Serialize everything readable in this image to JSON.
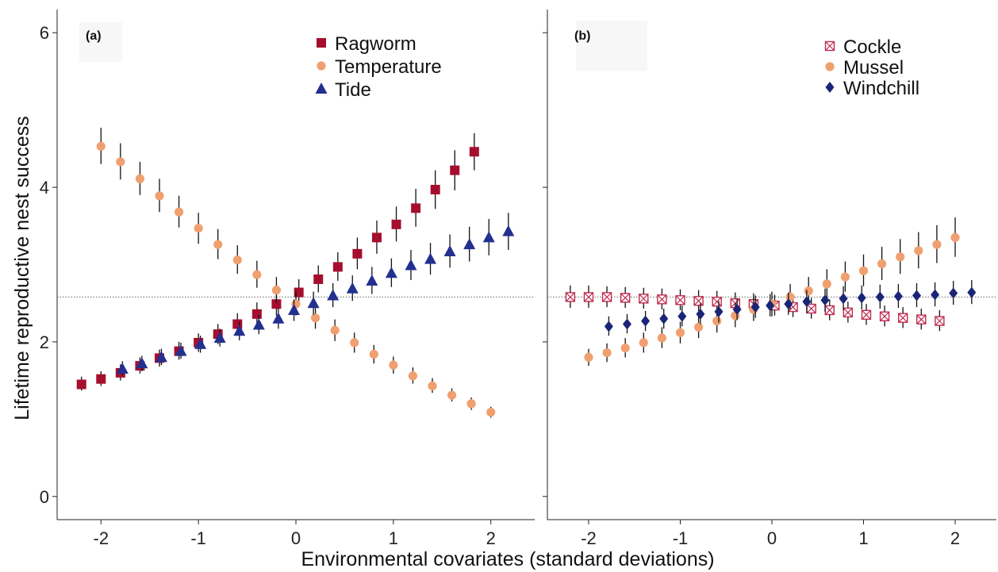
{
  "figure": {
    "xlabel": "Environmental covariates (standard deviations)",
    "ylabel": "Lifetime reproductive nest success"
  },
  "colors": {
    "ragworm": "#a50f2d",
    "temperature": "#f0a070",
    "tide": "#23308f",
    "cockle": "#c02a4e",
    "mussel": "#f0a070",
    "windchill": "#1b2577",
    "errorbar": "#111111",
    "refline": "#666666"
  },
  "chart_data": [
    {
      "type": "scatter",
      "panel_label": "(a)",
      "title": "",
      "xlabel": "Environmental covariates (standard deviations)",
      "ylabel": "Lifetime reproductive nest success",
      "xlim": [
        -2.45,
        2.45
      ],
      "ylim": [
        -0.3,
        6.3
      ],
      "xticks": [
        -2,
        -1,
        0,
        1,
        2
      ],
      "yticks": [
        0,
        2,
        4,
        6
      ],
      "reference_y": 2.58,
      "grid": false,
      "legend_position": "top-right",
      "series": [
        {
          "name": "Ragworm",
          "marker": "square",
          "color": "#a50f2d",
          "points": [
            {
              "x": -2.2,
              "y": 1.45,
              "lo": 1.37,
              "hi": 1.55
            },
            {
              "x": -2.0,
              "y": 1.52,
              "lo": 1.43,
              "hi": 1.62
            },
            {
              "x": -1.8,
              "y": 1.6,
              "lo": 1.5,
              "hi": 1.71
            },
            {
              "x": -1.6,
              "y": 1.69,
              "lo": 1.59,
              "hi": 1.8
            },
            {
              "x": -1.4,
              "y": 1.79,
              "lo": 1.68,
              "hi": 1.9
            },
            {
              "x": -1.2,
              "y": 1.88,
              "lo": 1.77,
              "hi": 2.0
            },
            {
              "x": -1.0,
              "y": 1.99,
              "lo": 1.87,
              "hi": 2.11
            },
            {
              "x": -0.8,
              "y": 2.1,
              "lo": 1.97,
              "hi": 2.23
            },
            {
              "x": -0.6,
              "y": 2.23,
              "lo": 2.1,
              "hi": 2.37
            },
            {
              "x": -0.4,
              "y": 2.36,
              "lo": 2.22,
              "hi": 2.51
            },
            {
              "x": -0.2,
              "y": 2.49,
              "lo": 2.34,
              "hi": 2.65
            },
            {
              "x": 0.03,
              "y": 2.64,
              "lo": 2.48,
              "hi": 2.81
            },
            {
              "x": 0.23,
              "y": 2.81,
              "lo": 2.64,
              "hi": 2.99
            },
            {
              "x": 0.43,
              "y": 2.97,
              "lo": 2.79,
              "hi": 3.16
            },
            {
              "x": 0.63,
              "y": 3.14,
              "lo": 2.94,
              "hi": 3.35
            },
            {
              "x": 0.83,
              "y": 3.35,
              "lo": 3.14,
              "hi": 3.57
            },
            {
              "x": 1.03,
              "y": 3.52,
              "lo": 3.3,
              "hi": 3.75
            },
            {
              "x": 1.23,
              "y": 3.73,
              "lo": 3.49,
              "hi": 3.98
            },
            {
              "x": 1.43,
              "y": 3.97,
              "lo": 3.72,
              "hi": 4.22
            },
            {
              "x": 1.63,
              "y": 4.22,
              "lo": 3.96,
              "hi": 4.48
            },
            {
              "x": 1.83,
              "y": 4.46,
              "lo": 4.22,
              "hi": 4.7
            }
          ]
        },
        {
          "name": "Temperature",
          "marker": "circle",
          "color": "#f0a070",
          "points": [
            {
              "x": -2.0,
              "y": 4.53,
              "lo": 4.3,
              "hi": 4.77
            },
            {
              "x": -1.8,
              "y": 4.33,
              "lo": 4.1,
              "hi": 4.57
            },
            {
              "x": -1.6,
              "y": 4.11,
              "lo": 3.9,
              "hi": 4.33
            },
            {
              "x": -1.4,
              "y": 3.89,
              "lo": 3.68,
              "hi": 4.11
            },
            {
              "x": -1.2,
              "y": 3.68,
              "lo": 3.48,
              "hi": 3.89
            },
            {
              "x": -1.0,
              "y": 3.47,
              "lo": 3.27,
              "hi": 3.67
            },
            {
              "x": -0.8,
              "y": 3.26,
              "lo": 3.07,
              "hi": 3.46
            },
            {
              "x": -0.6,
              "y": 3.06,
              "lo": 2.88,
              "hi": 3.25
            },
            {
              "x": -0.4,
              "y": 2.87,
              "lo": 2.7,
              "hi": 3.05
            },
            {
              "x": -0.2,
              "y": 2.67,
              "lo": 2.51,
              "hi": 2.84
            },
            {
              "x": 0.0,
              "y": 2.49,
              "lo": 2.34,
              "hi": 2.65
            },
            {
              "x": 0.2,
              "y": 2.31,
              "lo": 2.17,
              "hi": 2.46
            },
            {
              "x": 0.4,
              "y": 2.15,
              "lo": 2.01,
              "hi": 2.29
            },
            {
              "x": 0.6,
              "y": 1.99,
              "lo": 1.86,
              "hi": 2.12
            },
            {
              "x": 0.8,
              "y": 1.84,
              "lo": 1.72,
              "hi": 1.96
            },
            {
              "x": 1.0,
              "y": 1.7,
              "lo": 1.59,
              "hi": 1.81
            },
            {
              "x": 1.2,
              "y": 1.56,
              "lo": 1.46,
              "hi": 1.67
            },
            {
              "x": 1.4,
              "y": 1.43,
              "lo": 1.34,
              "hi": 1.53
            },
            {
              "x": 1.6,
              "y": 1.31,
              "lo": 1.23,
              "hi": 1.4
            },
            {
              "x": 1.8,
              "y": 1.2,
              "lo": 1.12,
              "hi": 1.28
            },
            {
              "x": 2.0,
              "y": 1.09,
              "lo": 1.02,
              "hi": 1.16
            }
          ]
        },
        {
          "name": "Tide",
          "marker": "triangle",
          "color": "#23308f",
          "points": [
            {
              "x": -1.78,
              "y": 1.65,
              "lo": 1.56,
              "hi": 1.75
            },
            {
              "x": -1.58,
              "y": 1.72,
              "lo": 1.62,
              "hi": 1.82
            },
            {
              "x": -1.38,
              "y": 1.8,
              "lo": 1.7,
              "hi": 1.91
            },
            {
              "x": -1.18,
              "y": 1.88,
              "lo": 1.78,
              "hi": 1.99
            },
            {
              "x": -0.98,
              "y": 1.97,
              "lo": 1.86,
              "hi": 2.08
            },
            {
              "x": -0.78,
              "y": 2.05,
              "lo": 1.94,
              "hi": 2.17
            },
            {
              "x": -0.58,
              "y": 2.14,
              "lo": 2.02,
              "hi": 2.26
            },
            {
              "x": -0.38,
              "y": 2.22,
              "lo": 2.1,
              "hi": 2.35
            },
            {
              "x": -0.18,
              "y": 2.3,
              "lo": 2.17,
              "hi": 2.44
            },
            {
              "x": -0.02,
              "y": 2.41,
              "lo": 2.27,
              "hi": 2.55
            },
            {
              "x": 0.18,
              "y": 2.5,
              "lo": 2.35,
              "hi": 2.65
            },
            {
              "x": 0.38,
              "y": 2.6,
              "lo": 2.45,
              "hi": 2.76
            },
            {
              "x": 0.58,
              "y": 2.69,
              "lo": 2.53,
              "hi": 2.86
            },
            {
              "x": 0.78,
              "y": 2.79,
              "lo": 2.62,
              "hi": 2.97
            },
            {
              "x": 0.98,
              "y": 2.89,
              "lo": 2.71,
              "hi": 3.08
            },
            {
              "x": 1.18,
              "y": 2.99,
              "lo": 2.8,
              "hi": 3.19
            },
            {
              "x": 1.38,
              "y": 3.07,
              "lo": 2.87,
              "hi": 3.28
            },
            {
              "x": 1.58,
              "y": 3.17,
              "lo": 2.96,
              "hi": 3.39
            },
            {
              "x": 1.78,
              "y": 3.26,
              "lo": 3.04,
              "hi": 3.49
            },
            {
              "x": 1.98,
              "y": 3.35,
              "lo": 3.12,
              "hi": 3.59
            },
            {
              "x": 2.18,
              "y": 3.43,
              "lo": 3.19,
              "hi": 3.67
            }
          ]
        }
      ]
    },
    {
      "type": "scatter",
      "panel_label": "(b)",
      "title": "",
      "xlabel": "Environmental covariates (standard deviations)",
      "ylabel": "",
      "xlim": [
        -2.45,
        2.45
      ],
      "ylim": [
        -0.3,
        6.3
      ],
      "xticks": [
        -2,
        -1,
        0,
        1,
        2
      ],
      "yticks": [
        0,
        2,
        4,
        6
      ],
      "reference_y": 2.58,
      "grid": false,
      "legend_position": "top-right",
      "series": [
        {
          "name": "Cockle",
          "marker": "crossed-square",
          "color": "#c02a4e",
          "points": [
            {
              "x": -2.2,
              "y": 2.58,
              "lo": 2.44,
              "hi": 2.73
            },
            {
              "x": -2.0,
              "y": 2.58,
              "lo": 2.44,
              "hi": 2.73
            },
            {
              "x": -1.8,
              "y": 2.58,
              "lo": 2.45,
              "hi": 2.72
            },
            {
              "x": -1.6,
              "y": 2.57,
              "lo": 2.44,
              "hi": 2.71
            },
            {
              "x": -1.4,
              "y": 2.56,
              "lo": 2.43,
              "hi": 2.7
            },
            {
              "x": -1.2,
              "y": 2.55,
              "lo": 2.42,
              "hi": 2.69
            },
            {
              "x": -1.0,
              "y": 2.54,
              "lo": 2.41,
              "hi": 2.68
            },
            {
              "x": -0.8,
              "y": 2.53,
              "lo": 2.4,
              "hi": 2.67
            },
            {
              "x": -0.6,
              "y": 2.52,
              "lo": 2.39,
              "hi": 2.66
            },
            {
              "x": -0.4,
              "y": 2.5,
              "lo": 2.37,
              "hi": 2.64
            },
            {
              "x": -0.2,
              "y": 2.49,
              "lo": 2.36,
              "hi": 2.63
            },
            {
              "x": 0.03,
              "y": 2.47,
              "lo": 2.34,
              "hi": 2.61
            },
            {
              "x": 0.23,
              "y": 2.45,
              "lo": 2.32,
              "hi": 2.59
            },
            {
              "x": 0.43,
              "y": 2.43,
              "lo": 2.3,
              "hi": 2.57
            },
            {
              "x": 0.63,
              "y": 2.41,
              "lo": 2.28,
              "hi": 2.55
            },
            {
              "x": 0.83,
              "y": 2.38,
              "lo": 2.25,
              "hi": 2.52
            },
            {
              "x": 1.03,
              "y": 2.35,
              "lo": 2.22,
              "hi": 2.49
            },
            {
              "x": 1.23,
              "y": 2.33,
              "lo": 2.2,
              "hi": 2.47
            },
            {
              "x": 1.43,
              "y": 2.31,
              "lo": 2.18,
              "hi": 2.45
            },
            {
              "x": 1.63,
              "y": 2.29,
              "lo": 2.16,
              "hi": 2.43
            },
            {
              "x": 1.83,
              "y": 2.27,
              "lo": 2.14,
              "hi": 2.41
            }
          ]
        },
        {
          "name": "Mussel",
          "marker": "circle",
          "color": "#f0a070",
          "points": [
            {
              "x": -2.0,
              "y": 1.8,
              "lo": 1.69,
              "hi": 1.91
            },
            {
              "x": -1.8,
              "y": 1.86,
              "lo": 1.74,
              "hi": 1.98
            },
            {
              "x": -1.6,
              "y": 1.92,
              "lo": 1.8,
              "hi": 2.05
            },
            {
              "x": -1.4,
              "y": 1.99,
              "lo": 1.86,
              "hi": 2.12
            },
            {
              "x": -1.2,
              "y": 2.05,
              "lo": 1.92,
              "hi": 2.19
            },
            {
              "x": -1.0,
              "y": 2.12,
              "lo": 1.98,
              "hi": 2.26
            },
            {
              "x": -0.8,
              "y": 2.19,
              "lo": 2.05,
              "hi": 2.34
            },
            {
              "x": -0.6,
              "y": 2.27,
              "lo": 2.12,
              "hi": 2.42
            },
            {
              "x": -0.4,
              "y": 2.34,
              "lo": 2.19,
              "hi": 2.5
            },
            {
              "x": -0.2,
              "y": 2.42,
              "lo": 2.27,
              "hi": 2.58
            },
            {
              "x": 0.0,
              "y": 2.49,
              "lo": 2.33,
              "hi": 2.65
            },
            {
              "x": 0.2,
              "y": 2.58,
              "lo": 2.42,
              "hi": 2.75
            },
            {
              "x": 0.4,
              "y": 2.66,
              "lo": 2.49,
              "hi": 2.84
            },
            {
              "x": 0.6,
              "y": 2.75,
              "lo": 2.57,
              "hi": 2.94
            },
            {
              "x": 0.8,
              "y": 2.84,
              "lo": 2.65,
              "hi": 3.04
            },
            {
              "x": 1.0,
              "y": 2.92,
              "lo": 2.72,
              "hi": 3.13
            },
            {
              "x": 1.2,
              "y": 3.01,
              "lo": 2.8,
              "hi": 3.23
            },
            {
              "x": 1.4,
              "y": 3.1,
              "lo": 2.88,
              "hi": 3.33
            },
            {
              "x": 1.6,
              "y": 3.18,
              "lo": 2.95,
              "hi": 3.42
            },
            {
              "x": 1.8,
              "y": 3.26,
              "lo": 3.02,
              "hi": 3.51
            },
            {
              "x": 2.0,
              "y": 3.35,
              "lo": 3.1,
              "hi": 3.61
            }
          ]
        },
        {
          "name": "Windchill",
          "marker": "diamond",
          "color": "#1b2577",
          "points": [
            {
              "x": -1.78,
              "y": 2.2,
              "lo": 2.08,
              "hi": 2.33
            },
            {
              "x": -1.58,
              "y": 2.23,
              "lo": 2.11,
              "hi": 2.36
            },
            {
              "x": -1.38,
              "y": 2.27,
              "lo": 2.14,
              "hi": 2.4
            },
            {
              "x": -1.18,
              "y": 2.3,
              "lo": 2.17,
              "hi": 2.43
            },
            {
              "x": -0.98,
              "y": 2.33,
              "lo": 2.2,
              "hi": 2.47
            },
            {
              "x": -0.78,
              "y": 2.36,
              "lo": 2.23,
              "hi": 2.5
            },
            {
              "x": -0.58,
              "y": 2.39,
              "lo": 2.25,
              "hi": 2.53
            },
            {
              "x": -0.38,
              "y": 2.42,
              "lo": 2.28,
              "hi": 2.56
            },
            {
              "x": -0.18,
              "y": 2.45,
              "lo": 2.31,
              "hi": 2.6
            },
            {
              "x": -0.02,
              "y": 2.47,
              "lo": 2.33,
              "hi": 2.62
            },
            {
              "x": 0.18,
              "y": 2.49,
              "lo": 2.35,
              "hi": 2.64
            },
            {
              "x": 0.38,
              "y": 2.52,
              "lo": 2.37,
              "hi": 2.67
            },
            {
              "x": 0.58,
              "y": 2.54,
              "lo": 2.39,
              "hi": 2.69
            },
            {
              "x": 0.78,
              "y": 2.56,
              "lo": 2.41,
              "hi": 2.72
            },
            {
              "x": 0.98,
              "y": 2.57,
              "lo": 2.42,
              "hi": 2.73
            },
            {
              "x": 1.18,
              "y": 2.58,
              "lo": 2.43,
              "hi": 2.74
            },
            {
              "x": 1.38,
              "y": 2.59,
              "lo": 2.44,
              "hi": 2.75
            },
            {
              "x": 1.58,
              "y": 2.6,
              "lo": 2.45,
              "hi": 2.76
            },
            {
              "x": 1.78,
              "y": 2.61,
              "lo": 2.46,
              "hi": 2.77
            },
            {
              "x": 1.98,
              "y": 2.63,
              "lo": 2.48,
              "hi": 2.79
            },
            {
              "x": 2.18,
              "y": 2.64,
              "lo": 2.49,
              "hi": 2.8
            }
          ]
        }
      ]
    }
  ]
}
